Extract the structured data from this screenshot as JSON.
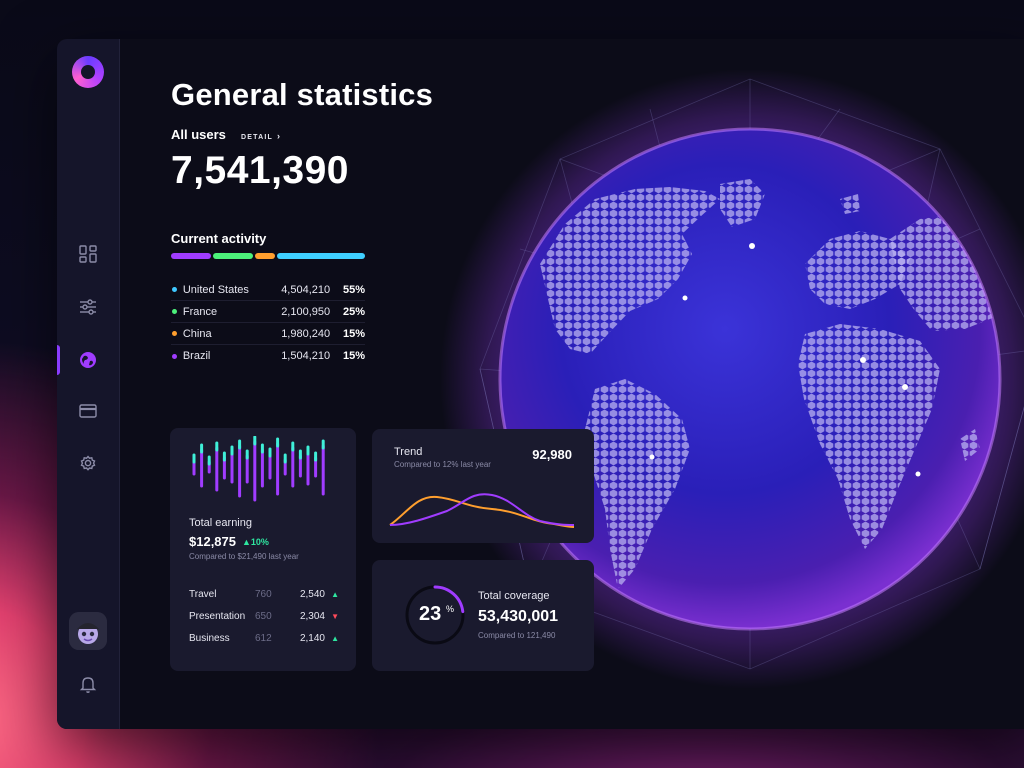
{
  "header": {
    "title": "General statistics",
    "all_users_label": "All users",
    "detail_link": "DETAIL",
    "all_users_value": "7,541,390"
  },
  "activity": {
    "label": "Current activity",
    "bar_colors": [
      "#a03cff",
      "#4cf07a",
      "#ff9f2e",
      "#3fd0ff"
    ],
    "countries": [
      {
        "name": "United States",
        "value": "4,504,210",
        "pct": "55%",
        "color": "#3fc8ff"
      },
      {
        "name": "France",
        "value": "2,100,950",
        "pct": "25%",
        "color": "#4cf07a"
      },
      {
        "name": "China",
        "value": "1,980,240",
        "pct": "15%",
        "color": "#ff9f2e"
      },
      {
        "name": "Brazil",
        "value": "1,504,210",
        "pct": "15%",
        "color": "#a03cff"
      }
    ]
  },
  "earning": {
    "title": "Total earning",
    "value": "$12,875",
    "change": "10%",
    "subtitle": "Compared to $21,490 last year",
    "rows": [
      {
        "name": "Travel",
        "a": "760",
        "b": "2,540",
        "trend": "up"
      },
      {
        "name": "Presentation",
        "a": "650",
        "b": "2,304",
        "trend": "down"
      },
      {
        "name": "Business",
        "a": "612",
        "b": "2,140",
        "trend": "up"
      }
    ]
  },
  "trend": {
    "title": "Trend",
    "subtitle": "Compared to 12% last year",
    "value": "92,980"
  },
  "coverage": {
    "percent": "23",
    "percent_sign": "%",
    "percent_value": 0.23,
    "title": "Total coverage",
    "value": "53,430,001",
    "subtitle": "Compared to 121,490"
  },
  "sidebar": {
    "items": [
      {
        "icon": "dashboard-icon"
      },
      {
        "icon": "sliders-icon"
      },
      {
        "icon": "globe-icon",
        "active": true
      },
      {
        "icon": "card-icon"
      },
      {
        "icon": "gear-icon"
      }
    ],
    "bottom_icon": "bell-icon"
  },
  "colors": {
    "accent": "#8a3cff",
    "up": "#2ee6a0",
    "down": "#ff4a5a"
  }
}
